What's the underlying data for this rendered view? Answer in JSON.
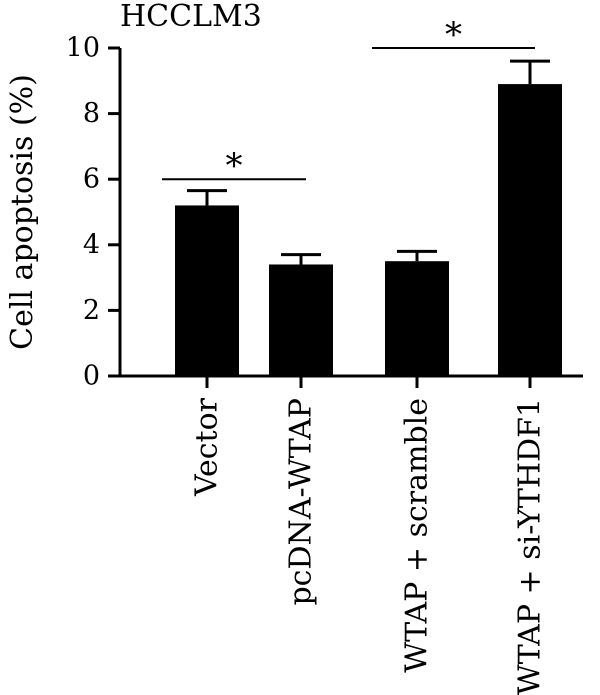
{
  "chart_data": {
    "type": "bar",
    "title": "HCCLM3",
    "ylabel": "Cell apoptosis (%)",
    "xlabel": "",
    "ylim": [
      0,
      10
    ],
    "yticks": [
      0,
      2,
      4,
      6,
      8,
      10
    ],
    "categories": [
      "Vector",
      "pcDNA-WTAP",
      "WTAP + scramble",
      "WTAP + si-YTHDF1"
    ],
    "values": [
      5.2,
      3.4,
      3.5,
      8.9
    ],
    "errors": [
      0.45,
      0.3,
      0.3,
      0.7
    ],
    "bar_color": "#000000",
    "significance": [
      {
        "from": 0,
        "to": 1,
        "level": 6.0,
        "label": "*"
      },
      {
        "from": 2,
        "to": 3,
        "level": 10.0,
        "label": "*"
      }
    ],
    "grid": false
  }
}
